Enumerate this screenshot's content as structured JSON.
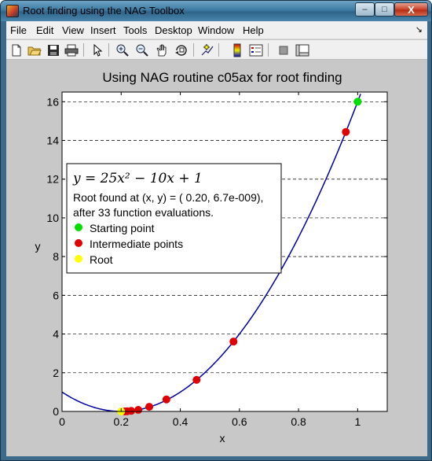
{
  "window": {
    "title": "Root finding using the NAG Toolbox",
    "min_glyph": "–",
    "max_glyph": "□",
    "close_glyph": "X"
  },
  "menubar": {
    "items": [
      "File",
      "Edit",
      "View",
      "Insert",
      "Tools",
      "Desktop",
      "Window",
      "Help"
    ],
    "dock_glyph": "↘"
  },
  "toolbar": {
    "icons": [
      "new-figure-icon",
      "open-file-icon",
      "save-icon",
      "print-icon",
      "edit-plot-arrow-icon",
      "zoom-in-icon",
      "zoom-out-icon",
      "pan-hand-icon",
      "rotate-3d-icon",
      "data-cursor-icon",
      "insert-colorbar-icon",
      "insert-legend-icon",
      "hide-plot-tools-icon",
      "show-plot-tools-icon"
    ]
  },
  "colors": {
    "curve": "#0000a0",
    "start_marker": "#00e000",
    "intermediate_marker": "#e00000",
    "root_marker": "#ffff00",
    "figure_bg": "#c8c8c8",
    "axes_bg": "#ffffff"
  },
  "chart_data": {
    "type": "scatter",
    "title": "Using NAG routine c05ax for root finding",
    "xlabel": "x",
    "ylabel": "y",
    "xlim": [
      0,
      1.1
    ],
    "ylim": [
      0,
      16.5
    ],
    "xticks": [
      0,
      0.2,
      0.4,
      0.6,
      0.8,
      1
    ],
    "xtick_labels": [
      "0",
      "0.2",
      "0.4",
      "0.6",
      "0.8",
      "1"
    ],
    "yticks": [
      0,
      2,
      4,
      6,
      8,
      10,
      12,
      14,
      16
    ],
    "ytick_labels": [
      "0",
      "2",
      "4",
      "6",
      "8",
      "10",
      "12",
      "14",
      "16"
    ],
    "grid": "horizontal dashed",
    "equation": "y = 25x² − 10x + 1",
    "curve_coefficients": [
      25,
      -10,
      1
    ],
    "legend": {
      "placement": "upper-left",
      "message_line1": "Root found at (x, y) = ( 0.20, 6.7e-009),",
      "message_line2": "after 33 function evaluations.",
      "entries": [
        "Starting point",
        "Intermediate points",
        "Root"
      ]
    },
    "series": [
      {
        "name": "Starting point",
        "x": [
          1.0
        ],
        "y": [
          16.0
        ]
      },
      {
        "name": "Intermediate points",
        "x": [
          0.96,
          0.58,
          0.455,
          0.353,
          0.295,
          0.258,
          0.234,
          0.22,
          0.212
        ],
        "y": [
          14.44,
          3.61,
          1.63,
          0.62,
          0.24,
          0.08,
          0.03,
          0.01,
          0.0
        ]
      },
      {
        "name": "Root",
        "x": [
          0.2
        ],
        "y": [
          0.0
        ]
      }
    ]
  }
}
